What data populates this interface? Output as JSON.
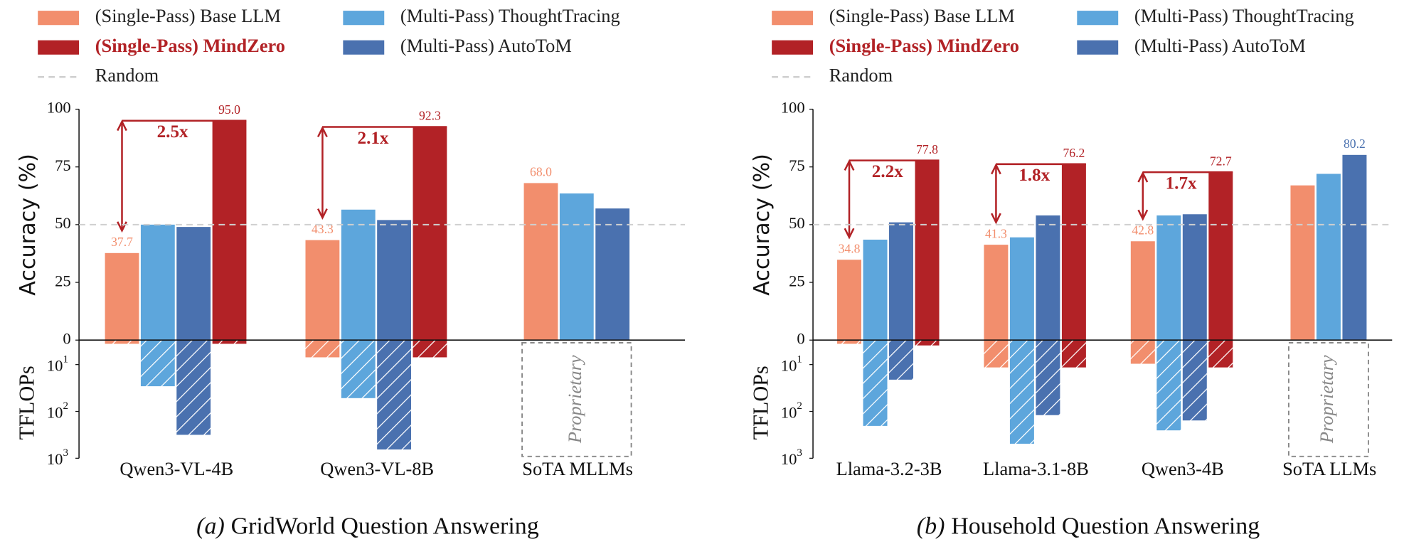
{
  "chart_data": [
    {
      "type": "bar",
      "caption_label": "(a)",
      "title": "GridWorld Question Answering",
      "categories": [
        "Qwen3-VL-4B",
        "Qwen3-VL-8B",
        "SoTA MLLMs"
      ],
      "ylabel": "Accuracy (%)",
      "ylim": [
        0,
        100
      ],
      "yticks": [
        0,
        25,
        50,
        75,
        100
      ],
      "y2label": "TFLOPs",
      "y2lim": [
        3,
        1000
      ],
      "y2log": true,
      "y2ticks": [
        {
          "value": 10,
          "label": "10",
          "exponent": "1"
        },
        {
          "value": 100,
          "label": "10",
          "exponent": "2"
        },
        {
          "value": 1000,
          "label": "10",
          "exponent": "3"
        }
      ],
      "random": 50,
      "random_label": "Random",
      "random_color": "#cfcfcf",
      "series": [
        {
          "name": "(Single-Pass) Base LLM",
          "color": "#F28E6D",
          "values": [
            37.7,
            43.3,
            68.0
          ],
          "value_labels": [
            "37.7",
            "43.3",
            "68.0"
          ],
          "tflops": [
            3.6,
            7,
            null
          ]
        },
        {
          "name": "(Multi-Pass) ThoughtTracing",
          "color": "#5DA6DC",
          "values": [
            50,
            56.5,
            63.5
          ],
          "tflops": [
            29,
            52,
            null
          ]
        },
        {
          "name": "(Multi-Pass) AutoToM",
          "color": "#4A71AF",
          "values": [
            49,
            52,
            57
          ],
          "tflops": [
            316,
            650,
            null
          ]
        },
        {
          "name": "(Single-Pass) MindZero",
          "color": "#B22226",
          "highlight": true,
          "values": [
            95.0,
            92.3,
            null
          ],
          "value_labels": [
            "95.0",
            "92.3",
            null
          ],
          "tflops": [
            3.6,
            7,
            null
          ]
        }
      ],
      "speedups": [
        "2.5x",
        "2.1x",
        null
      ],
      "proprietary_label": "Proprietary"
    },
    {
      "type": "bar",
      "caption_label": "(b)",
      "title": "Household Question Answering",
      "categories": [
        "Llama-3.2-3B",
        "Llama-3.1-8B",
        "Qwen3-4B",
        "SoTA LLMs"
      ],
      "ylabel": "Accuracy (%)",
      "ylim": [
        0,
        100
      ],
      "yticks": [
        0,
        25,
        50,
        75,
        100
      ],
      "y2label": "TFLOPs",
      "y2lim": [
        3,
        1000
      ],
      "y2log": true,
      "y2ticks": [
        {
          "value": 10,
          "label": "10",
          "exponent": "1"
        },
        {
          "value": 100,
          "label": "10",
          "exponent": "2"
        },
        {
          "value": 1000,
          "label": "10",
          "exponent": "3"
        }
      ],
      "random": 50,
      "random_label": "Random",
      "random_color": "#cfcfcf",
      "series": [
        {
          "name": "(Single-Pass) Base LLM",
          "color": "#F28E6D",
          "values": [
            34.8,
            41.3,
            42.8,
            67
          ],
          "value_labels": [
            "34.8",
            "41.3",
            "42.8",
            null
          ],
          "tflops": [
            3.6,
            11.5,
            9.6,
            null
          ]
        },
        {
          "name": "(Multi-Pass) ThoughtTracing",
          "color": "#5DA6DC",
          "values": [
            43.5,
            44.5,
            54,
            72
          ],
          "tflops": [
            204,
            490,
            254,
            null
          ]
        },
        {
          "name": "(Multi-Pass) AutoToM",
          "color": "#4A71AF",
          "values": [
            51,
            54,
            54.5,
            80.2
          ],
          "value_labels": [
            null,
            null,
            null,
            "80.2"
          ],
          "tflops": [
            21,
            120,
            156,
            null
          ]
        },
        {
          "name": "(Single-Pass) MindZero",
          "color": "#B22226",
          "highlight": true,
          "values": [
            77.8,
            76.2,
            72.7,
            null
          ],
          "value_labels": [
            "77.8",
            "76.2",
            "72.7",
            null
          ],
          "tflops": [
            3.9,
            11.5,
            11.5,
            null
          ]
        }
      ],
      "speedups": [
        "2.2x",
        "1.8x",
        "1.7x",
        null
      ],
      "proprietary_label": "Proprietary"
    }
  ]
}
